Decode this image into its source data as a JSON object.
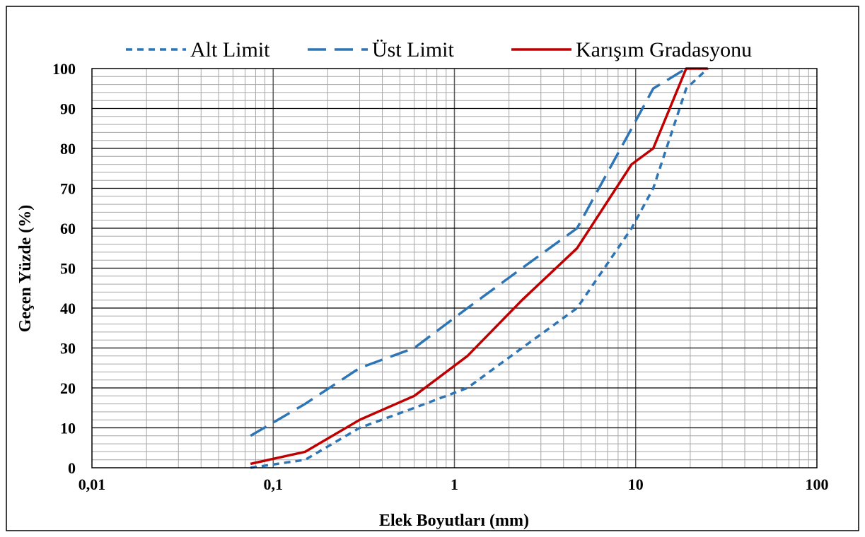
{
  "chart_data": {
    "type": "line",
    "xscale": "log",
    "xlim": [
      0.01,
      100
    ],
    "ylim": [
      0,
      100
    ],
    "xlabel": "Elek Boyutları (mm)",
    "ylabel": "Geçen Yüzde (%)",
    "x_ticks": [
      "0,01",
      "0,1",
      "1",
      "10",
      "100"
    ],
    "y_ticks": [
      "0",
      "10",
      "20",
      "30",
      "40",
      "50",
      "60",
      "70",
      "80",
      "90",
      "100"
    ],
    "grid": true,
    "legend_position": "top",
    "series": [
      {
        "name": "Alt Limit",
        "color": "#2E75B6",
        "line_style": "dotted",
        "x": [
          0.075,
          0.15,
          0.3,
          0.6,
          1.18,
          2.36,
          4.75,
          9.5,
          12.5,
          19,
          25
        ],
        "y": [
          0,
          2,
          10,
          15,
          20,
          30,
          40,
          60,
          70,
          95,
          100
        ]
      },
      {
        "name": "Üst Limit",
        "color": "#2E75B6",
        "line_style": "dashed",
        "x": [
          0.075,
          0.15,
          0.3,
          0.6,
          1.18,
          2.36,
          4.75,
          9.5,
          12.5,
          19
        ],
        "y": [
          8,
          16,
          25,
          30,
          40,
          50,
          60,
          85,
          95,
          100
        ]
      },
      {
        "name": "Karışım Gradasyonu",
        "color": "#C00000",
        "line_style": "solid",
        "x": [
          0.075,
          0.15,
          0.3,
          0.6,
          1.18,
          2.36,
          4.75,
          9.5,
          12.5,
          19,
          25
        ],
        "y": [
          1,
          4,
          12,
          18,
          28,
          42,
          55,
          76,
          80,
          100,
          100
        ]
      }
    ]
  }
}
